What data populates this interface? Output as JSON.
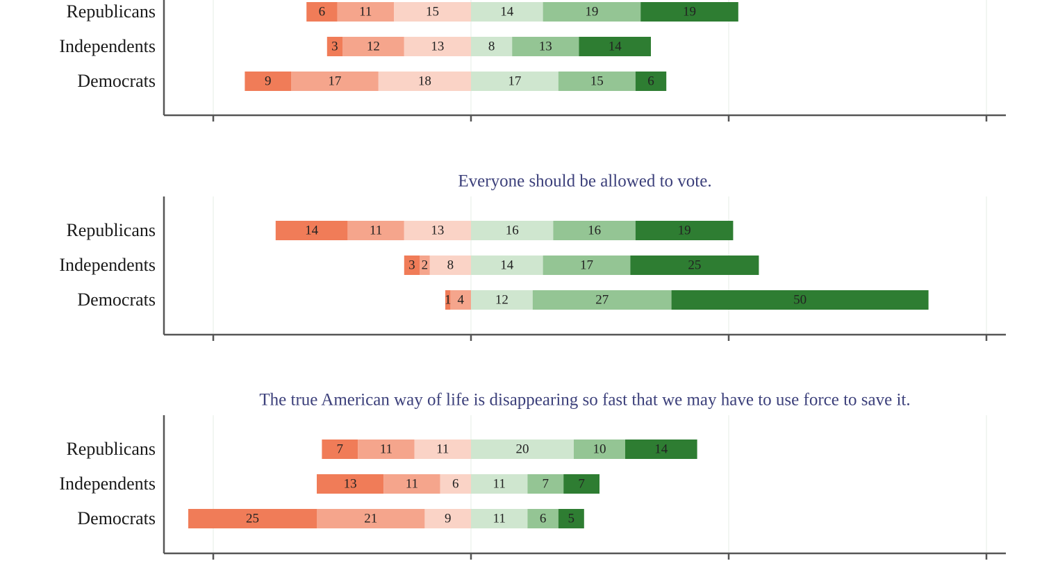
{
  "chart_data": [
    {
      "type": "bar",
      "title": "",
      "categories": [
        "Republicans",
        "Independents",
        "Democrats"
      ],
      "segments_left": [
        [
          6,
          11,
          15
        ],
        [
          3,
          12,
          13
        ],
        [
          9,
          17,
          18
        ]
      ],
      "segments_right": [
        [
          14,
          19,
          19
        ],
        [
          8,
          13,
          14
        ],
        [
          17,
          15,
          6
        ]
      ]
    },
    {
      "type": "bar",
      "title": "Everyone should be allowed to vote.",
      "categories": [
        "Republicans",
        "Independents",
        "Democrats"
      ],
      "segments_left": [
        [
          14,
          11,
          13
        ],
        [
          3,
          2,
          8
        ],
        [
          1,
          4,
          0
        ]
      ],
      "segments_right": [
        [
          16,
          16,
          19
        ],
        [
          14,
          17,
          25
        ],
        [
          12,
          27,
          50
        ]
      ]
    },
    {
      "type": "bar",
      "title": "The true American way of life is disappearing so fast that we may have to use force to save it.",
      "categories": [
        "Republicans",
        "Independents",
        "Democrats"
      ],
      "segments_left": [
        [
          7,
          11,
          11
        ],
        [
          13,
          11,
          6
        ],
        [
          25,
          21,
          9
        ]
      ],
      "segments_right": [
        [
          20,
          10,
          14
        ],
        [
          11,
          7,
          7
        ],
        [
          11,
          6,
          5
        ]
      ]
    }
  ],
  "colors": {
    "disagree": [
      "#f07c58",
      "#f5a58c",
      "#fad3c6"
    ],
    "agree": [
      "#cfe6cf",
      "#94c594",
      "#2e7d32"
    ],
    "axis": "#555555",
    "grid": "#e6ece6",
    "title": "#3b3f7a"
  }
}
